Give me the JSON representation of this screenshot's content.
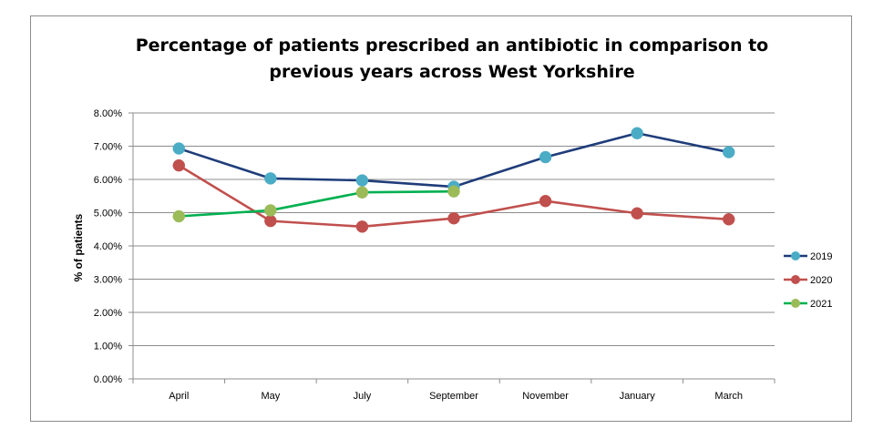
{
  "chart_data": {
    "type": "line",
    "title_lines": [
      "Percentage of patients prescribed an antibiotic in comparison to",
      "previous years across West Yorkshire"
    ],
    "xlabel": "",
    "ylabel": "% of patients",
    "categories": [
      "April",
      "May",
      "July",
      "September",
      "November",
      "January",
      "March"
    ],
    "ylim": [
      0,
      8
    ],
    "yticks": [
      "0.00%",
      "1.00%",
      "2.00%",
      "3.00%",
      "4.00%",
      "5.00%",
      "6.00%",
      "7.00%",
      "8.00%"
    ],
    "grid": true,
    "legend_position": "right",
    "series": [
      {
        "name": "2019",
        "color": "#1f3d7a",
        "marker_color": "#4bacc6",
        "values": [
          6.93,
          6.03,
          5.97,
          5.78,
          6.67,
          7.39,
          6.82
        ]
      },
      {
        "name": "2020",
        "color": "#c0504d",
        "marker_color": "#c0504d",
        "values": [
          6.42,
          4.75,
          4.58,
          4.83,
          5.35,
          4.98,
          4.8
        ]
      },
      {
        "name": "2021",
        "color": "#00b050",
        "marker_color": "#9bbb59",
        "values": [
          4.89,
          5.07,
          5.61,
          5.64,
          null,
          null,
          null
        ]
      }
    ]
  }
}
